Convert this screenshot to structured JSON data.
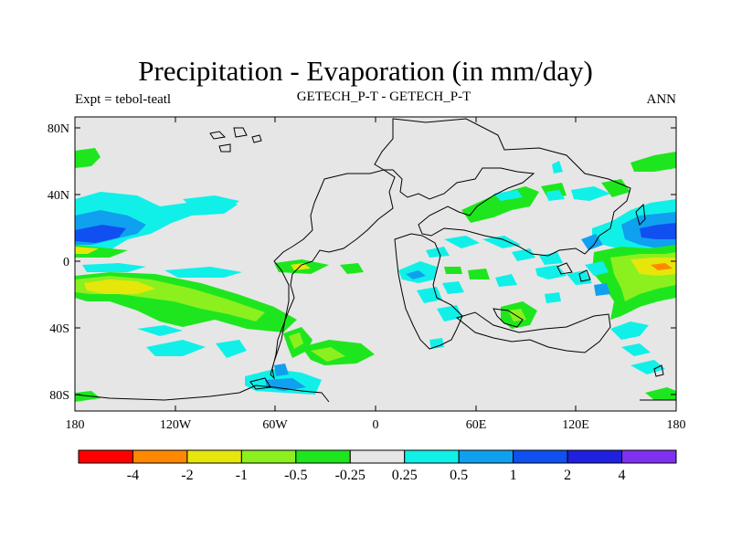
{
  "title": "Precipitation - Evaporation (in mm/day)",
  "subtitle_left": "Expt = tebol-teatl",
  "subtitle_center": "GETECH_P-T - GETECH_P-T",
  "subtitle_right": "ANN",
  "axes": {
    "x_ticks": [
      "180",
      "120W",
      "60W",
      "0",
      "60E",
      "120E",
      "180"
    ],
    "y_ticks": [
      "80N",
      "40N",
      "0",
      "40S",
      "80S"
    ]
  },
  "colorbar": {
    "colors": [
      "#ff0000",
      "#ff8800",
      "#e6e60a",
      "#8cf01e",
      "#1ee61e",
      "#e6e6e6",
      "#10f0e8",
      "#10a0f0",
      "#1050f0",
      "#2020e0",
      "#8030f0"
    ],
    "labels": [
      "-4",
      "-2",
      "-1",
      "-0.5",
      "-0.25",
      "0.25",
      "0.5",
      "1",
      "2",
      "4"
    ]
  }
}
